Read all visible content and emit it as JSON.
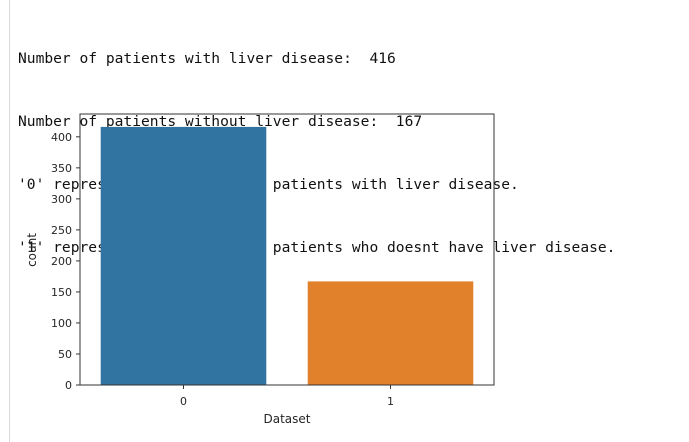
{
  "output": {
    "lines": [
      "Number of patients with liver disease:  416",
      "Number of patients without liver disease:  167",
      "'0' represents the number of patients with liver disease.",
      "'1' represents the number of patients who doesnt have liver disease."
    ]
  },
  "chart_data": {
    "type": "bar",
    "categories": [
      "0",
      "1"
    ],
    "values": [
      416,
      167
    ],
    "xlabel": "Dataset",
    "ylabel": "count",
    "ylim": [
      0,
      436.8
    ],
    "yticks": [
      0,
      50,
      100,
      150,
      200,
      250,
      300,
      350,
      400
    ],
    "colors": [
      "#3274a1",
      "#e1812c"
    ],
    "grid": false,
    "legend": "none"
  }
}
